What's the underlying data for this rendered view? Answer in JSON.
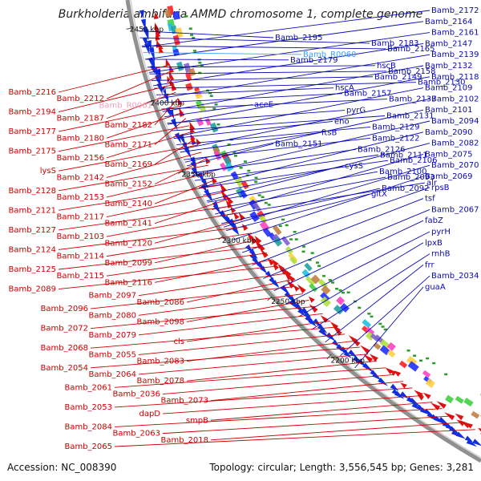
{
  "title": "Burkholderia ambifaria AMMD chromosome 1, complete genome",
  "accession_text": "Accession: NC_008390",
  "topology_text": "Topology: circular; Length: 3,556,545 bp; Genes: 3,281",
  "ticks": [
    "2450 kbp",
    "2400 kbp",
    "2350 kbp",
    "2300 kbp",
    "2250 kbp",
    "2200 kbp"
  ],
  "colors": {
    "backbone": "#909090",
    "forward_label": "#0a0ab4",
    "reverse_label": "#cc0000",
    "highlight_forward": "#3aa0ff",
    "highlight_reverse": "#f0a0c0",
    "forward_arrow": "#1030e0",
    "reverse_arrow": "#e01010"
  },
  "labels_right": [
    "Bamb_2172",
    "Bamb_2164",
    "Bamb_2161",
    "Bamb_2147",
    "Bamb_2139",
    "Bamb_2132",
    "Bamb_2118",
    "Bamb_2109",
    "Bamb_2102",
    "Bamb_2101",
    "Bamb_2094",
    "Bamb_2090",
    "Bamb_2082",
    "Bamb_2075",
    "Bamb_2070",
    "Bamb_2069",
    "rpsB",
    "tsf",
    "Bamb_2067",
    "fabZ",
    "pyrH",
    "lpxB",
    "rnhB",
    "frr",
    "Bamb_2034",
    "guaA"
  ],
  "labels_mid": [
    "Bamb_2195",
    "Bamb_2183",
    "Bamb_2165",
    "Bamb_R0060",
    "Bamb_2179",
    "hscB",
    "Bamb_2158",
    "Bamb_2149",
    "Bamb_2130",
    "hscA",
    "Bamb_2157",
    "Bamb_2137",
    "aceE",
    "pyrG",
    "Bamb_2131",
    "eno",
    "Bamb_2129",
    "ftsB",
    "Bamb_2122",
    "Bamb_2151",
    "Bamb_2126",
    "Bamb_2111",
    "Bamb_2106",
    "cysS",
    "Bamb_2100",
    "Bamb_2093",
    "alr",
    "Bamb_2092",
    "gltX"
  ],
  "labels_left": [
    "Bamb_2216",
    "Bamb_2212",
    "Bamb_R0061",
    "Bamb_2194",
    "Bamb_2187",
    "Bamb_2182",
    "Bamb_2177",
    "Bamb_2180",
    "Bamb_2171",
    "Bamb_2175",
    "Bamb_2156",
    "Bamb_2169",
    "lysS",
    "Bamb_2142",
    "Bamb_2152",
    "Bamb_2128",
    "Bamb_2153",
    "Bamb_2140",
    "Bamb_2121",
    "Bamb_2117",
    "Bamb_2141",
    "Bamb_2127",
    "Bamb_2103",
    "Bamb_2120",
    "Bamb_2124",
    "Bamb_2114",
    "Bamb_2099",
    "Bamb_2125",
    "Bamb_2115",
    "Bamb_2116",
    "Bamb_2089",
    "Bamb_2097",
    "Bamb_2086",
    "Bamb_2096",
    "Bamb_2080",
    "Bamb_2098",
    "Bamb_2072",
    "Bamb_2079",
    "cls",
    "Bamb_2068",
    "Bamb_2055",
    "Bamb_2083",
    "Bamb_2054",
    "Bamb_2064",
    "Bamb_2078",
    "Bamb_2061",
    "Bamb_2036",
    "Bamb_2073",
    "Bamb_2053",
    "dapD",
    "smpB",
    "Bamb_2084",
    "Bamb_2063",
    "Bamb_2018",
    "Bamb_2065"
  ]
}
